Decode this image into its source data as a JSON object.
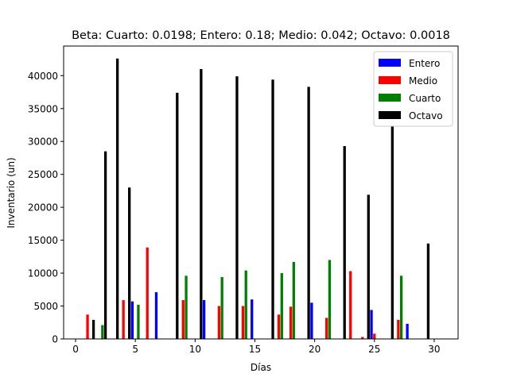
{
  "chart_data": {
    "type": "bar",
    "title": "Beta: Cuarto: 0.0198; Entero: 0.18; Medio: 0.042; Octavo: 0.0018",
    "xlabel": "Días",
    "ylabel": "Inventario (un)",
    "xlim": [
      -1,
      32
    ],
    "ylim": [
      0,
      44500
    ],
    "xticks": [
      0,
      5,
      10,
      15,
      20,
      25,
      30
    ],
    "yticks": [
      0,
      5000,
      10000,
      15000,
      20000,
      25000,
      30000,
      35000,
      40000
    ],
    "grid": false,
    "legend": "top-right",
    "bar_width": 0.22,
    "series": [
      {
        "name": "Entero",
        "color": "#0000ff",
        "points": [
          {
            "x": 4.75,
            "y": 5700
          },
          {
            "x": 6.75,
            "y": 7100
          },
          {
            "x": 10.75,
            "y": 5900
          },
          {
            "x": 14.75,
            "y": 6000
          },
          {
            "x": 19.75,
            "y": 5500
          },
          {
            "x": 24.75,
            "y": 4400
          },
          {
            "x": 27.75,
            "y": 2300
          }
        ]
      },
      {
        "name": "Medio",
        "color": "#ff0000",
        "points": [
          {
            "x": 1.0,
            "y": 3700
          },
          {
            "x": 4.0,
            "y": 5900
          },
          {
            "x": 6.0,
            "y": 13900
          },
          {
            "x": 9.0,
            "y": 5900
          },
          {
            "x": 12.0,
            "y": 5000
          },
          {
            "x": 14.0,
            "y": 5000
          },
          {
            "x": 17.0,
            "y": 3700
          },
          {
            "x": 18.0,
            "y": 4900
          },
          {
            "x": 21.0,
            "y": 3200
          },
          {
            "x": 23.0,
            "y": 10300
          },
          {
            "x": 24.0,
            "y": 300
          },
          {
            "x": 25.0,
            "y": 800
          },
          {
            "x": 27.0,
            "y": 2900
          }
        ]
      },
      {
        "name": "Cuarto",
        "color": "#008000",
        "points": [
          {
            "x": 2.25,
            "y": 2100
          },
          {
            "x": 5.25,
            "y": 5200
          },
          {
            "x": 9.25,
            "y": 9600
          },
          {
            "x": 12.25,
            "y": 9400
          },
          {
            "x": 14.25,
            "y": 10400
          },
          {
            "x": 17.25,
            "y": 10000
          },
          {
            "x": 18.25,
            "y": 11700
          },
          {
            "x": 21.25,
            "y": 12000
          },
          {
            "x": 27.25,
            "y": 9600
          }
        ]
      },
      {
        "name": "Octavo",
        "color": "#000000",
        "points": [
          {
            "x": 1.5,
            "y": 2900
          },
          {
            "x": 2.5,
            "y": 28500
          },
          {
            "x": 3.5,
            "y": 42600
          },
          {
            "x": 4.5,
            "y": 23000
          },
          {
            "x": 8.5,
            "y": 37400
          },
          {
            "x": 10.5,
            "y": 41000
          },
          {
            "x": 13.5,
            "y": 39900
          },
          {
            "x": 16.5,
            "y": 39400
          },
          {
            "x": 19.5,
            "y": 38300
          },
          {
            "x": 22.5,
            "y": 29300
          },
          {
            "x": 24.5,
            "y": 21900
          },
          {
            "x": 26.5,
            "y": 33000
          },
          {
            "x": 29.5,
            "y": 14500
          }
        ]
      }
    ]
  }
}
